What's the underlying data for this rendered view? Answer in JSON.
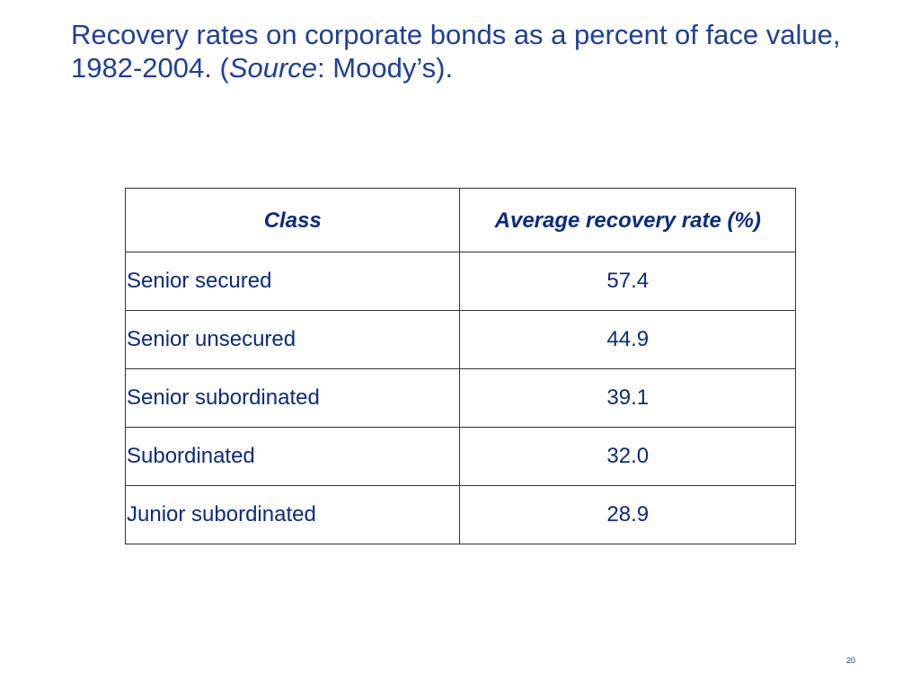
{
  "title": {
    "text_before": "Recovery rates on corporate bonds as a percent of face value, 1982-2004.  (",
    "source_label": "Source",
    "text_after": ": Moody’s)."
  },
  "table": {
    "headers": {
      "class": "Class",
      "rate": "Average recovery rate (%)"
    },
    "rows": [
      {
        "class": "Senior secured",
        "rate": "57.4"
      },
      {
        "class": "Senior unsecured",
        "rate": "44.9"
      },
      {
        "class": "Senior subordinated",
        "rate": "39.1"
      },
      {
        "class": "Subordinated",
        "rate": "32.0"
      },
      {
        "class": "Junior subordinated",
        "rate": "28.9"
      }
    ]
  },
  "page_number": "20",
  "colors": {
    "title": "#1f3f98",
    "table_text": "#0c2a80",
    "border": "#333333"
  }
}
